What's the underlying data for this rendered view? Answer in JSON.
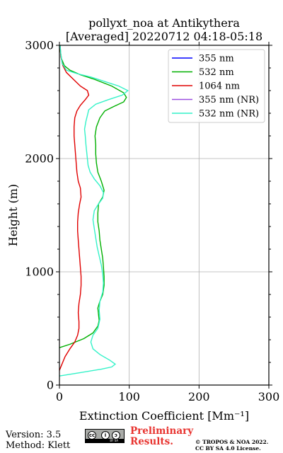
{
  "chart_data": {
    "type": "line",
    "title_line1": "pollyxt_noa at Antikythera",
    "title_line2": "[Averaged] 20220712 04:18-05:18",
    "xlabel": "Extinction Coefficient [Mm⁻¹]",
    "ylabel": "Height (m)",
    "xlim": [
      0,
      300
    ],
    "ylim": [
      0,
      3000
    ],
    "xticks": [
      "0",
      "100",
      "200",
      "300"
    ],
    "yticks": [
      "0",
      "1000",
      "2000",
      "3000"
    ],
    "xtick_values": [
      0,
      100,
      200,
      300
    ],
    "ytick_values": [
      0,
      1000,
      2000,
      3000
    ],
    "grid": true,
    "legend_position": "top-right",
    "series": [
      {
        "name": "355 nm",
        "color": "#0000ff",
        "points": []
      },
      {
        "name": "532 nm",
        "color": "#00b000",
        "points": [
          [
            0,
            330
          ],
          [
            15,
            360
          ],
          [
            35,
            410
          ],
          [
            48,
            460
          ],
          [
            55,
            520
          ],
          [
            57,
            570
          ],
          [
            56,
            620
          ],
          [
            55,
            680
          ],
          [
            58,
            740
          ],
          [
            62,
            800
          ],
          [
            64,
            880
          ],
          [
            64,
            960
          ],
          [
            63,
            1040
          ],
          [
            62,
            1120
          ],
          [
            60,
            1200
          ],
          [
            58,
            1280
          ],
          [
            57,
            1360
          ],
          [
            55,
            1440
          ],
          [
            55,
            1520
          ],
          [
            56,
            1600
          ],
          [
            62,
            1660
          ],
          [
            64,
            1720
          ],
          [
            60,
            1800
          ],
          [
            55,
            1880
          ],
          [
            53,
            1960
          ],
          [
            52,
            2040
          ],
          [
            52,
            2120
          ],
          [
            51,
            2200
          ],
          [
            53,
            2280
          ],
          [
            58,
            2360
          ],
          [
            65,
            2420
          ],
          [
            78,
            2460
          ],
          [
            92,
            2500
          ],
          [
            96,
            2540
          ],
          [
            92,
            2580
          ],
          [
            75,
            2640
          ],
          [
            50,
            2700
          ],
          [
            30,
            2740
          ],
          [
            15,
            2780
          ],
          [
            7,
            2820
          ],
          [
            3,
            2880
          ],
          [
            1,
            2960
          ],
          [
            1,
            3000
          ]
        ]
      },
      {
        "name": "1064 nm",
        "color": "#e00000",
        "points": [
          [
            0,
            130
          ],
          [
            8,
            250
          ],
          [
            15,
            320
          ],
          [
            22,
            380
          ],
          [
            26,
            440
          ],
          [
            28,
            500
          ],
          [
            28,
            560
          ],
          [
            27,
            640
          ],
          [
            28,
            720
          ],
          [
            30,
            800
          ],
          [
            31,
            880
          ],
          [
            31,
            960
          ],
          [
            30,
            1040
          ],
          [
            29,
            1120
          ],
          [
            28,
            1200
          ],
          [
            27,
            1280
          ],
          [
            26,
            1360
          ],
          [
            26,
            1440
          ],
          [
            27,
            1520
          ],
          [
            29,
            1600
          ],
          [
            31,
            1660
          ],
          [
            30,
            1740
          ],
          [
            27,
            1800
          ],
          [
            25,
            1880
          ],
          [
            24,
            1960
          ],
          [
            23,
            2040
          ],
          [
            22,
            2120
          ],
          [
            21,
            2200
          ],
          [
            21,
            2280
          ],
          [
            22,
            2360
          ],
          [
            25,
            2420
          ],
          [
            30,
            2470
          ],
          [
            37,
            2520
          ],
          [
            42,
            2560
          ],
          [
            40,
            2600
          ],
          [
            30,
            2640
          ],
          [
            20,
            2700
          ],
          [
            10,
            2760
          ],
          [
            5,
            2820
          ],
          [
            2,
            2900
          ],
          [
            1,
            3000
          ]
        ]
      },
      {
        "name": "355 nm (NR)",
        "color": "#9b4fe0",
        "points": []
      },
      {
        "name": "532 nm (NR)",
        "color": "#33f2c8",
        "points": [
          [
            0,
            80
          ],
          [
            30,
            110
          ],
          [
            60,
            140
          ],
          [
            75,
            160
          ],
          [
            80,
            185
          ],
          [
            72,
            220
          ],
          [
            58,
            270
          ],
          [
            48,
            320
          ],
          [
            45,
            380
          ],
          [
            48,
            440
          ],
          [
            55,
            500
          ],
          [
            58,
            580
          ],
          [
            57,
            660
          ],
          [
            58,
            740
          ],
          [
            62,
            820
          ],
          [
            63,
            900
          ],
          [
            62,
            980
          ],
          [
            60,
            1060
          ],
          [
            57,
            1140
          ],
          [
            54,
            1220
          ],
          [
            52,
            1300
          ],
          [
            50,
            1380
          ],
          [
            48,
            1460
          ],
          [
            50,
            1540
          ],
          [
            56,
            1600
          ],
          [
            62,
            1650
          ],
          [
            63,
            1700
          ],
          [
            58,
            1760
          ],
          [
            50,
            1820
          ],
          [
            44,
            1880
          ],
          [
            41,
            1940
          ],
          [
            40,
            2000
          ],
          [
            39,
            2060
          ],
          [
            38,
            2120
          ],
          [
            37,
            2200
          ],
          [
            36,
            2260
          ],
          [
            38,
            2330
          ],
          [
            40,
            2380
          ],
          [
            42,
            2430
          ],
          [
            52,
            2480
          ],
          [
            70,
            2520
          ],
          [
            90,
            2560
          ],
          [
            98,
            2600
          ],
          [
            85,
            2640
          ],
          [
            65,
            2680
          ],
          [
            45,
            2720
          ],
          [
            25,
            2750
          ],
          [
            10,
            2780
          ],
          [
            4,
            2840
          ],
          [
            2,
            2920
          ],
          [
            1,
            3000
          ]
        ]
      }
    ]
  },
  "footer": {
    "version": "Version: 3.5",
    "method": "Method: Klett",
    "preliminary_line1": "Preliminary",
    "preliminary_line2": "Results.",
    "copyright_line1": "© TROPOS & NOA 2022.",
    "copyright_line2": "CC BY SA 4.0 License.",
    "license_badge_glyphs": [
      "cc",
      "i",
      "ↄ"
    ],
    "license_badge_text": "BY SA"
  }
}
